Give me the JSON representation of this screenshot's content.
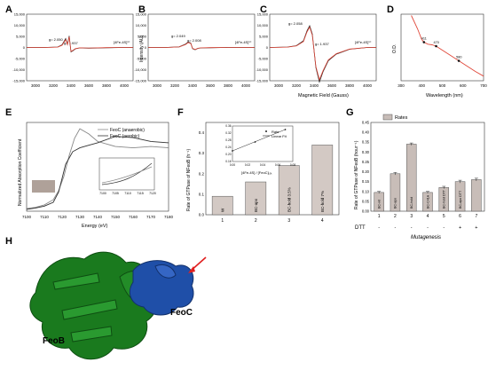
{
  "panels": {
    "A": {
      "letter": "A",
      "g1": "g= 2.050",
      "g2": "g= 1.937",
      "tag": "[4Fe-4S]¹⁺"
    },
    "B": {
      "letter": "B",
      "g1": "g= 2.049",
      "g2": "g= 2.008",
      "tag": "[4Fe-4S]¹⁺",
      "ylabel": "Intensity (AU)"
    },
    "C": {
      "letter": "C",
      "g1": "g= 2.058",
      "g2": "g= 1.937",
      "tag": "[4Fe-4S]¹⁺",
      "xlabel": "Magnetic Field (Gauss)"
    },
    "D": {
      "letter": "D",
      "ylabel": "O.D.",
      "xlabel": "Wavelength (nm)",
      "peaks": [
        "411",
        "470",
        "580"
      ]
    },
    "E": {
      "letter": "E",
      "ylabel": "Normalized Absorption Coefficient",
      "xlabel": "Energy (eV)",
      "legend": [
        "FeoC (anaerobic)",
        "FeoC (aerobic)"
      ]
    },
    "F": {
      "letter": "F",
      "ylabel": "Rate of GTPase of NFeoB (h⁻¹)",
      "inset_legend": [
        "Rate",
        "Linear Fit"
      ],
      "inset_xlabel": "[4Fe-4S] / [FeoC]ₜₒₜ"
    },
    "G": {
      "letter": "G",
      "ylabel": "Rate of GTPase of NFeoB (hour⁻¹)",
      "legend": "Rates",
      "dtt_label": "DTT",
      "mutagenesis_label": "Mutagenesis"
    },
    "H": {
      "letter": "H",
      "feob_label": "FeoB",
      "feoc_label": "FeoC"
    }
  },
  "chart_data": [
    {
      "panel": "A",
      "type": "line",
      "x_ticks": [
        "3000",
        "3200",
        "3400",
        "3600",
        "3800",
        "4000"
      ],
      "y_ticks": [
        "15,000",
        "10,000",
        "5,000",
        "0",
        "-5,000",
        "-10,000",
        "-15,000"
      ],
      "xlim": [
        2900,
        4100
      ],
      "ylim": [
        -15000,
        15000
      ],
      "series": [
        {
          "color": "#222222",
          "x": [
            2900,
            3100,
            3250,
            3300,
            3340,
            3360,
            3380,
            3400,
            3420,
            3450,
            3500,
            3600,
            3800,
            4000,
            4100
          ],
          "y": [
            0,
            0,
            200,
            1200,
            4000,
            1500,
            5200,
            -2000,
            -1500,
            -600,
            -200,
            -300,
            -100,
            0,
            0
          ]
        },
        {
          "color": "#e0483a",
          "x": [
            2900,
            3100,
            3250,
            3300,
            3340,
            3360,
            3380,
            3400,
            3420,
            3450,
            3500,
            3600,
            3800,
            4000,
            4100
          ],
          "y": [
            0,
            0,
            150,
            1000,
            3500,
            1300,
            4800,
            -1800,
            -1300,
            -500,
            -150,
            -250,
            -80,
            0,
            0
          ]
        }
      ]
    },
    {
      "panel": "B",
      "type": "line",
      "x_ticks": [
        "3000",
        "3200",
        "3400",
        "3600",
        "3800",
        "4000"
      ],
      "y_ticks": [
        "15,000",
        "10,000",
        "5,000",
        "0",
        "-5,000",
        "-10,000",
        "-15,000"
      ],
      "xlim": [
        2900,
        4100
      ],
      "ylim": [
        -15000,
        15000
      ],
      "series": [
        {
          "color": "#222222",
          "x": [
            2900,
            3100,
            3250,
            3320,
            3350,
            3380,
            3400,
            3430,
            3460,
            3500,
            3600,
            3800,
            4000,
            4100
          ],
          "y": [
            0,
            0,
            300,
            1500,
            2500,
            2000,
            -500,
            -1000,
            -400,
            -200,
            -100,
            0,
            0,
            0
          ]
        },
        {
          "color": "#e0483a",
          "x": [
            2900,
            3100,
            3250,
            3320,
            3350,
            3380,
            3400,
            3430,
            3460,
            3500,
            3600,
            3800,
            4000,
            4100
          ],
          "y": [
            0,
            0,
            250,
            1300,
            2200,
            1800,
            -400,
            -900,
            -350,
            -150,
            -80,
            0,
            0,
            0
          ]
        }
      ]
    },
    {
      "panel": "C",
      "type": "line",
      "x_ticks": [
        "3000",
        "3200",
        "3400",
        "3600",
        "3800",
        "4000"
      ],
      "y_ticks": [
        "15,000",
        "10,000",
        "5,000",
        "0",
        "-5,000",
        "-10,000",
        "-15,000"
      ],
      "xlim": [
        2900,
        4100
      ],
      "ylim": [
        -15000,
        15000
      ],
      "series": [
        {
          "color": "#222222",
          "x": [
            2900,
            3100,
            3200,
            3280,
            3320,
            3350,
            3380,
            3420,
            3460,
            3500,
            3560,
            3650,
            3800,
            4000,
            4100
          ],
          "y": [
            0,
            200,
            800,
            3000,
            7500,
            9800,
            6000,
            -9000,
            -15500,
            -11000,
            -6000,
            -3000,
            -800,
            0,
            0
          ]
        },
        {
          "color": "#e0483a",
          "x": [
            2900,
            3100,
            3200,
            3280,
            3320,
            3350,
            3380,
            3420,
            3460,
            3500,
            3560,
            3650,
            3800,
            4000,
            4100
          ],
          "y": [
            0,
            150,
            700,
            2700,
            7000,
            9200,
            5500,
            -8500,
            -14500,
            -10500,
            -5600,
            -2800,
            -700,
            0,
            0
          ]
        }
      ]
    },
    {
      "panel": "D",
      "type": "line",
      "x_ticks": [
        "300",
        "400",
        "500",
        "600",
        "700"
      ],
      "xlim": [
        300,
        700
      ],
      "ylim": [
        0,
        1
      ],
      "series": [
        {
          "color": "#e0483a",
          "x": [
            350,
            380,
            400,
            411,
            430,
            450,
            470,
            500,
            540,
            580,
            620,
            660,
            700
          ],
          "y": [
            0.98,
            0.78,
            0.62,
            0.58,
            0.55,
            0.54,
            0.52,
            0.46,
            0.38,
            0.3,
            0.22,
            0.14,
            0.07
          ]
        }
      ],
      "markers": [
        {
          "x": 411,
          "y": 0.58
        },
        {
          "x": 470,
          "y": 0.52
        },
        {
          "x": 580,
          "y": 0.3
        }
      ]
    },
    {
      "panel": "E",
      "type": "line",
      "x_ticks": [
        "7100",
        "7110",
        "7120",
        "7130",
        "7140",
        "7150",
        "7160",
        "7170",
        "7180"
      ],
      "xlim": [
        7100,
        7180
      ],
      "ylim": [
        0,
        1.4
      ],
      "series": [
        {
          "name": "FeoC (anaerobic)",
          "color": "#888888",
          "x": [
            7100,
            7105,
            7110,
            7115,
            7118,
            7121,
            7124,
            7127,
            7130,
            7135,
            7140,
            7150,
            7160,
            7170,
            7180
          ],
          "y": [
            0.04,
            0.06,
            0.1,
            0.18,
            0.32,
            0.55,
            0.88,
            1.15,
            1.3,
            1.22,
            1.1,
            1.02,
            1.0,
            1.02,
            1.0
          ]
        },
        {
          "name": "FeoC (aerobic)",
          "color": "#333333",
          "x": [
            7100,
            7105,
            7110,
            7115,
            7118,
            7120,
            7122,
            7126,
            7130,
            7135,
            7140,
            7150,
            7160,
            7170,
            7180
          ],
          "y": [
            0.03,
            0.05,
            0.08,
            0.14,
            0.3,
            0.52,
            0.74,
            0.94,
            1.0,
            1.04,
            1.08,
            1.18,
            1.16,
            1.1,
            1.08
          ]
        }
      ],
      "inset": {
        "x_ticks": [
          "7100",
          "7105",
          "7110",
          "7115",
          "7120"
        ]
      }
    },
    {
      "panel": "F",
      "type": "bar",
      "categories": [
        "1",
        "2",
        "3",
        "4"
      ],
      "bar_labels": [
        "W",
        "BC-apo",
        "BC-hold 3.5%",
        "BC-hold 7%"
      ],
      "values": [
        0.09,
        0.16,
        0.24,
        0.34
      ],
      "y_ticks": [
        "0.0",
        "0.1",
        "0.2",
        "0.3",
        "0.4"
      ],
      "ylim": [
        0,
        0.45
      ],
      "inset": {
        "x": [
          0,
          0.03,
          0.07
        ],
        "y": [
          0.22,
          0.27,
          0.34
        ],
        "x_ticks": [
          "0.00",
          "0.02",
          "0.04",
          "0.06",
          "0.08"
        ],
        "y_ticks": [
          "0.16",
          "0.20",
          "0.24",
          "0.28",
          "0.32",
          "0.36"
        ],
        "xlim": [
          0,
          0.08
        ],
        "ylim": [
          0.16,
          0.36
        ]
      }
    },
    {
      "panel": "G",
      "type": "bar",
      "categories": [
        "1",
        "2",
        "3",
        "4",
        "5",
        "6",
        "7"
      ],
      "bar_labels": [
        "BC-wt",
        "BC-apo",
        "BC-hold",
        "BC-C41A",
        "BC-hold DTT",
        "BC-apo DTT",
        ""
      ],
      "values": [
        0.095,
        0.19,
        0.34,
        0.095,
        0.12,
        0.15,
        0.16
      ],
      "errors": [
        0.005,
        0.006,
        0.006,
        0.005,
        0.006,
        0.007,
        0.007
      ],
      "dtt": [
        "-",
        "-",
        "-",
        "-",
        "-",
        "+",
        "+"
      ],
      "y_ticks": [
        "0.00",
        "0.05",
        "0.10",
        "0.15",
        "0.20",
        "0.25",
        "0.30",
        "0.35",
        "0.40",
        "0.45"
      ],
      "ylim": [
        0,
        0.45
      ]
    }
  ]
}
